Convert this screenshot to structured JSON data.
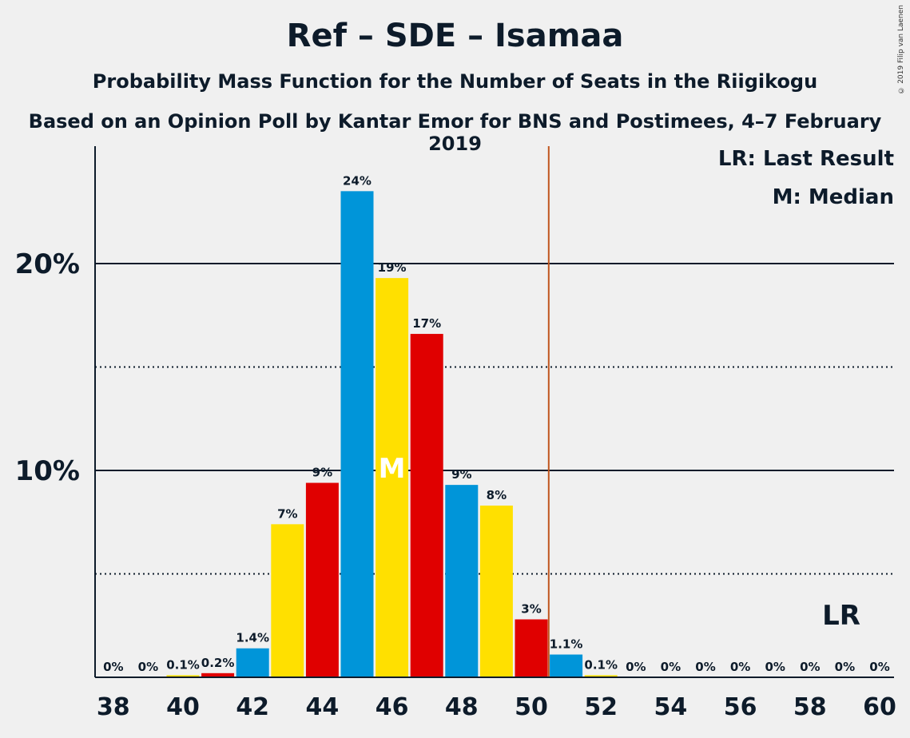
{
  "header": {
    "title": "Ref – SDE – Isamaa",
    "subtitle1": "Probability Mass Function for the Number of Seats in the Riigikogu",
    "subtitle2": "Based on an Opinion Poll by Kantar Emor for BNS and Postimees, 4–7 February 2019",
    "copyright": "© 2019 Filip van Laenen"
  },
  "legend": {
    "lr": "LR: Last Result",
    "median": "M: Median"
  },
  "chart_data": {
    "type": "bar",
    "title": "Ref – SDE – Isamaa",
    "categories": [
      38,
      39,
      40,
      41,
      42,
      43,
      44,
      45,
      46,
      47,
      48,
      49,
      50,
      51,
      52,
      53,
      54,
      55,
      56,
      57,
      58,
      59,
      60
    ],
    "values": [
      0,
      0,
      0.1,
      0.2,
      1.4,
      7.4,
      9.4,
      23.5,
      19.3,
      16.6,
      9.3,
      8.3,
      2.8,
      1.1,
      0.1,
      0,
      0,
      0,
      0,
      0,
      0,
      0,
      0
    ],
    "data_labels": [
      "0%",
      "0%",
      "0.1%",
      "0.2%",
      "1.4%",
      "7%",
      "9%",
      "24%",
      "19%",
      "17%",
      "9%",
      "8%",
      "3%",
      "1.1%",
      "0.1%",
      "0%",
      "0%",
      "0%",
      "0%",
      "0%",
      "0%",
      "0%",
      "0%"
    ],
    "x_tick_labels": [
      "38",
      "40",
      "42",
      "44",
      "46",
      "48",
      "50",
      "52",
      "54",
      "56",
      "58",
      "60"
    ],
    "y_tick_labels": [
      "10%",
      "20%"
    ],
    "ylim": [
      0,
      25.7
    ],
    "median_seat": 46,
    "median_label": "M",
    "last_result_seat": 50.5,
    "last_result_label": "LR",
    "colors": [
      "#e00000",
      "#0095d9",
      "#ffe000"
    ],
    "lr_line_color": "#c0561e",
    "grid": "solid at 10% and 20%, dotted at 5% and 15%"
  }
}
